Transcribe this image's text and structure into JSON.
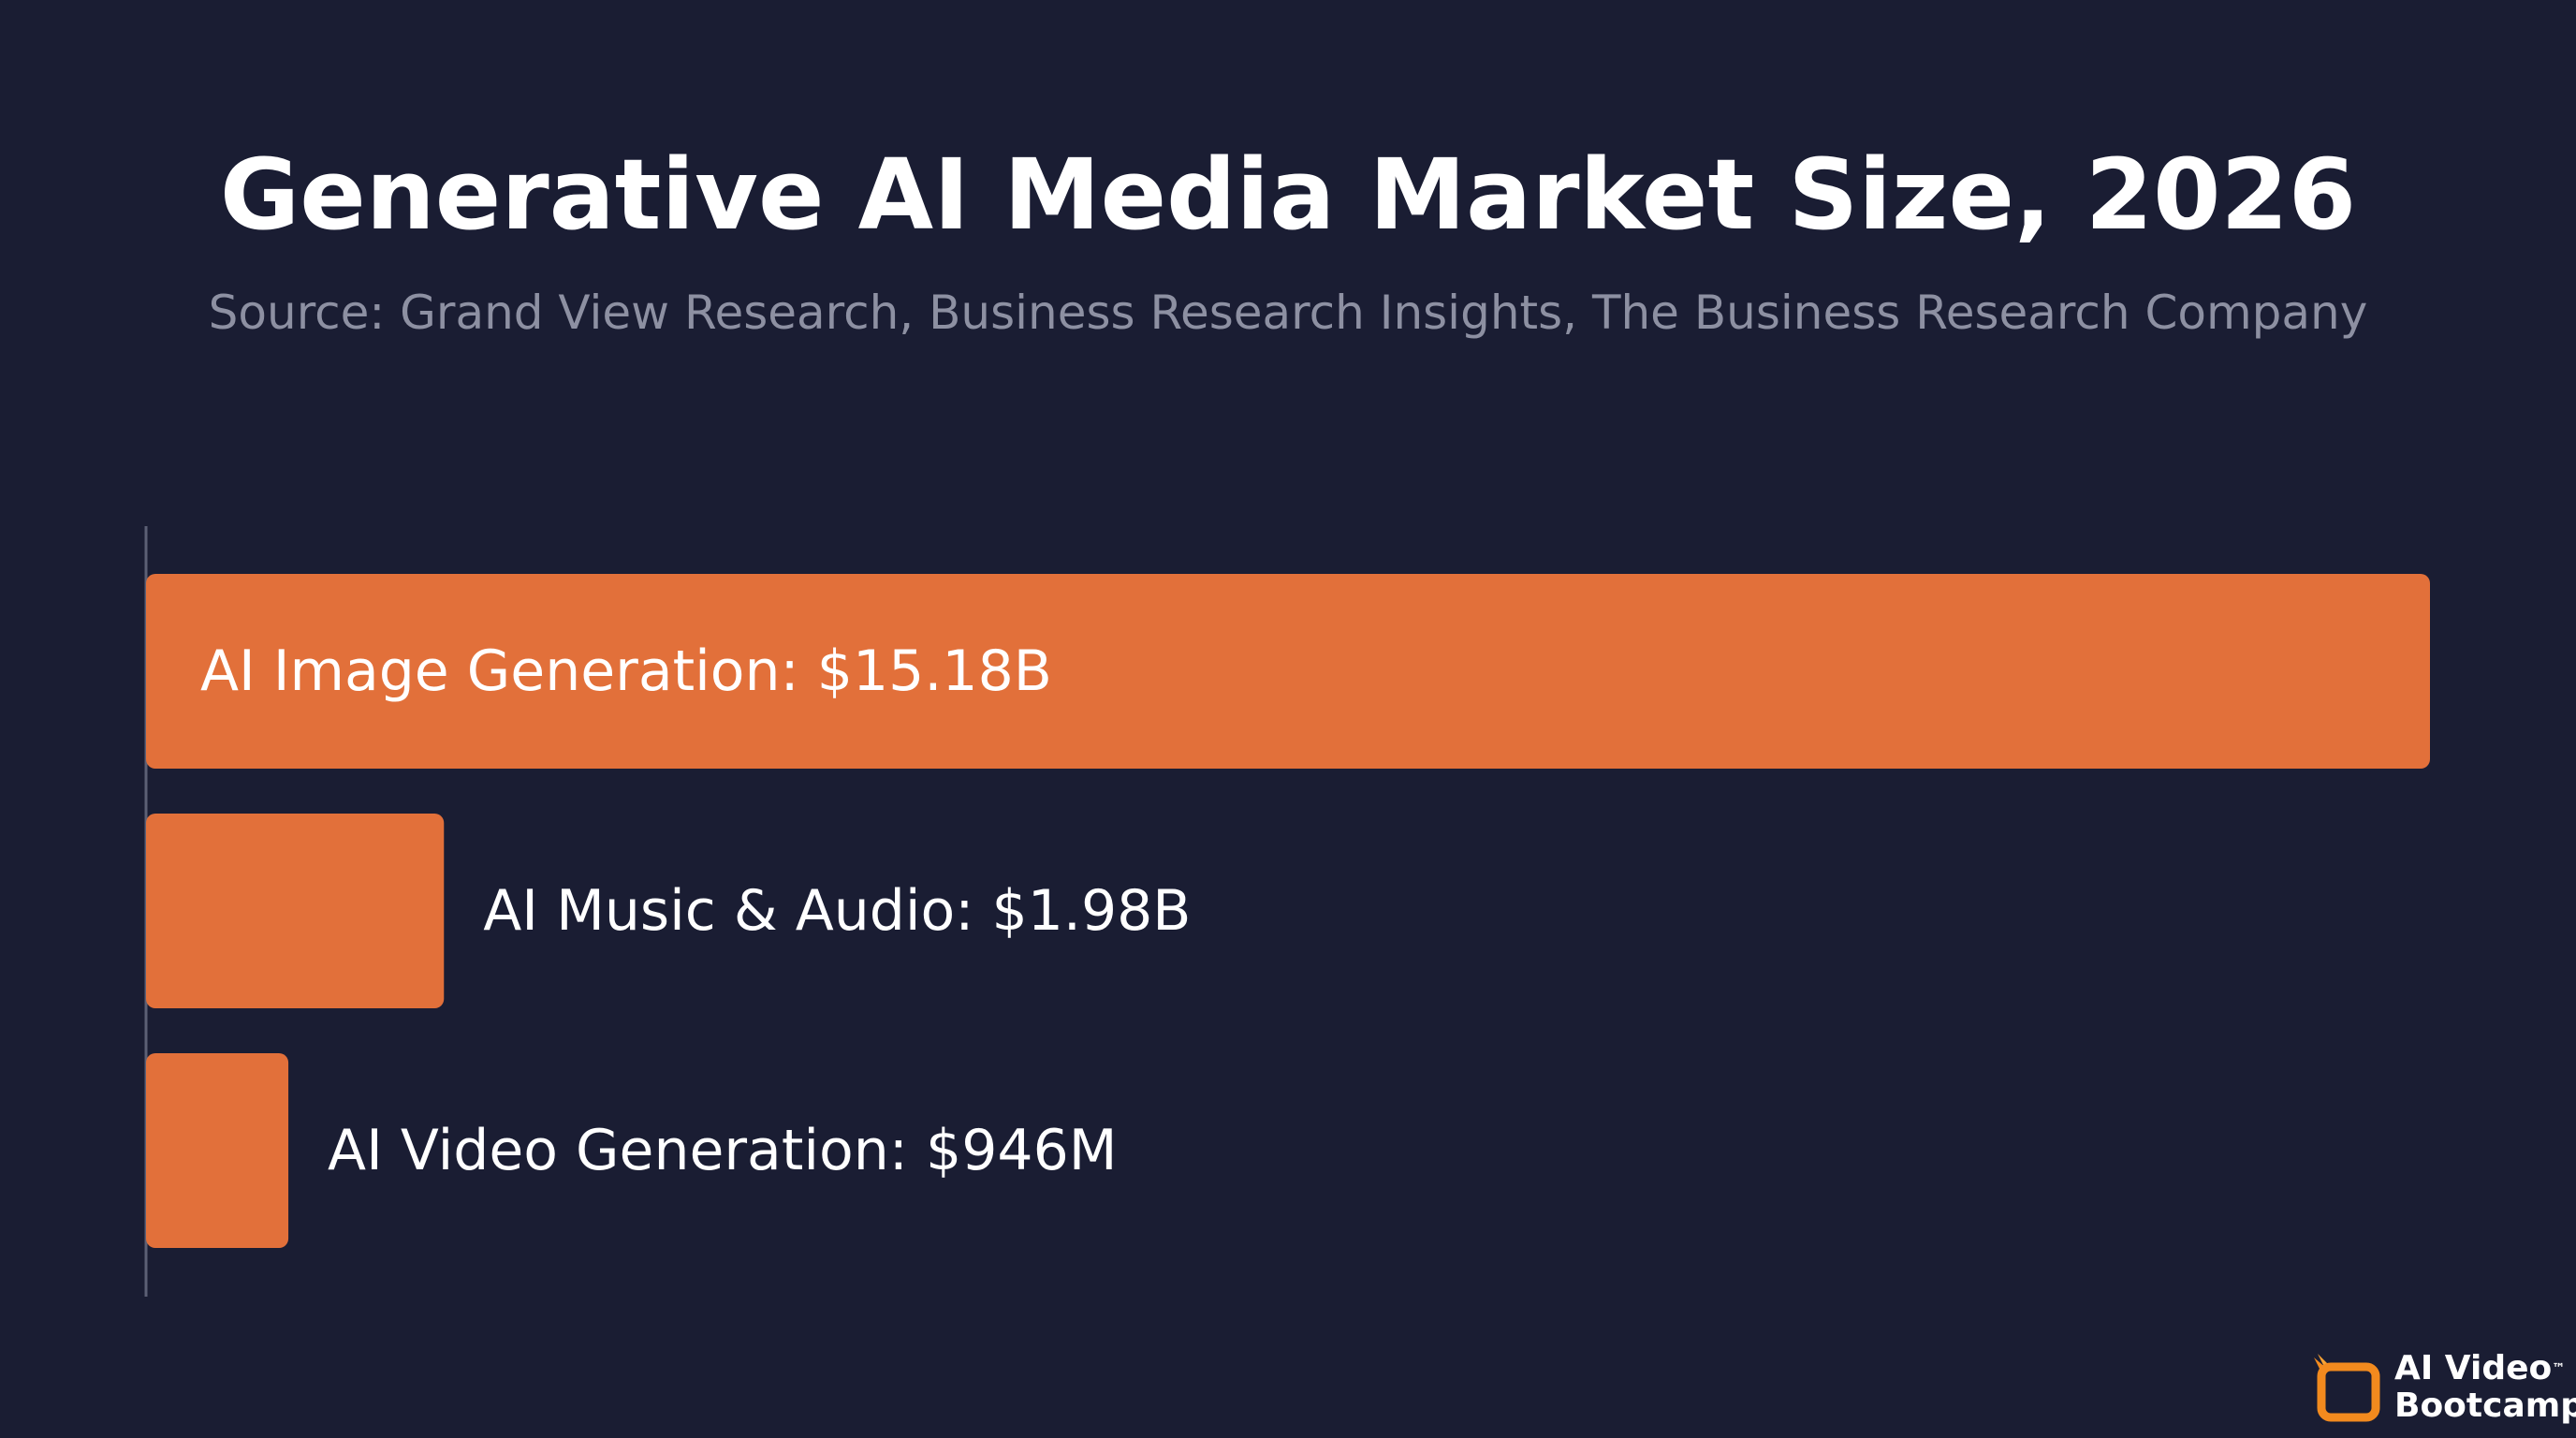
{
  "chart_data": {
    "type": "bar",
    "orientation": "horizontal",
    "title": "Generative AI Media Market Size, 2026",
    "subtitle": "Source: Grand View Research, Business Research Insights, The Business Research Company",
    "xlabel": "",
    "ylabel": "",
    "grid": false,
    "categories": [
      "AI Image Generation",
      "AI Music & Audio",
      "AI Video Generation"
    ],
    "values": [
      15.18,
      1.98,
      0.946
    ],
    "unit": "billion USD",
    "data_labels": [
      "AI Image Generation: $15.18B",
      "AI Music & Audio: $1.98B",
      "AI Video Generation: $946M"
    ],
    "bar_color": "#e2703a"
  },
  "colors": {
    "background": "#1a1d33",
    "title": "#ffffff",
    "subtitle": "#8d90a2",
    "bar": "#e2703a",
    "axis": "#5c6075",
    "logo_accent": "#f28a1e"
  },
  "brand": {
    "line1": "AI Video",
    "trademark": "™",
    "line2": "Bootcamp",
    "icon": "play-screen-icon"
  }
}
